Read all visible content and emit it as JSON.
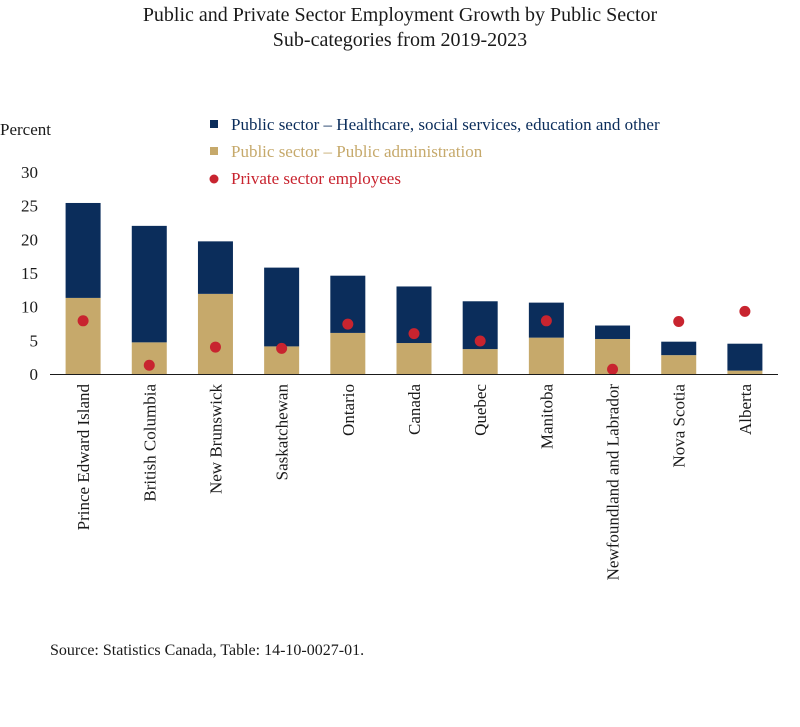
{
  "chart_data": {
    "type": "bar",
    "stacked": true,
    "title_lines": [
      "Public and Private Sector Employment Growth by Public Sector",
      "Sub-categories from 2019-2023"
    ],
    "ylabel": "Percent",
    "ylim": [
      0,
      30
    ],
    "yticks": [
      0,
      5,
      10,
      15,
      20,
      25,
      30
    ],
    "grid": false,
    "legend_position": "top-right",
    "categories": [
      "Prince Edward Island",
      "British Columbia",
      "New Brunswick",
      "Saskatchewan",
      "Ontario",
      "Canada",
      "Quebec",
      "Manitoba",
      "Newfoundland and Labrador",
      "Nova Scotia",
      "Alberta"
    ],
    "series": [
      {
        "name": "Public sector – Public administration",
        "kind": "bar",
        "color": "#c6a96b",
        "values": [
          11.3,
          4.7,
          11.9,
          4.1,
          6.1,
          4.6,
          3.7,
          5.4,
          5.2,
          2.8,
          0.5
        ]
      },
      {
        "name": "Public sector – Healthcare, social services, education and other",
        "kind": "bar",
        "color": "#0b2d5b",
        "values": [
          14.1,
          17.3,
          7.8,
          11.7,
          8.5,
          8.4,
          7.1,
          5.2,
          2.0,
          2.0,
          4.0
        ]
      },
      {
        "name": "Private sector employees",
        "kind": "dot",
        "color": "#c8242f",
        "values": [
          7.9,
          1.3,
          4.0,
          3.8,
          7.4,
          6.0,
          4.9,
          7.9,
          0.7,
          7.8,
          9.3
        ]
      }
    ],
    "legend_order": [
      1,
      0,
      2
    ]
  },
  "source": "Source: Statistics Canada, Table: 14-10-0027-01."
}
